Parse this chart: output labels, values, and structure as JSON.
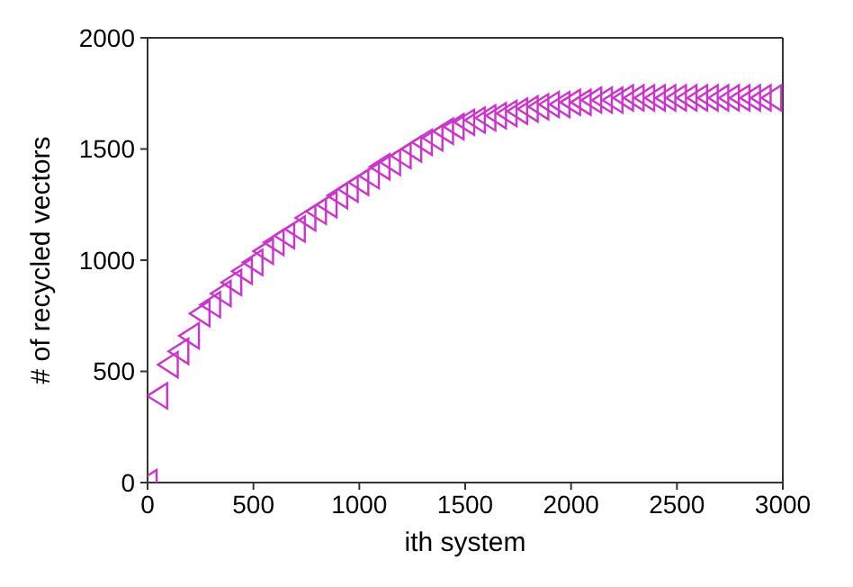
{
  "chart_data": {
    "type": "scatter",
    "xlabel": "ith system",
    "ylabel": "# of recycled vectors",
    "marker": "triangle",
    "xlim": [
      0,
      3000
    ],
    "xticks": [
      0,
      500,
      1000,
      1500,
      2000,
      2500,
      3000
    ],
    "ylim": [
      0,
      2000
    ],
    "yticks": [
      0,
      500,
      1000,
      1500,
      2000
    ],
    "series": [
      {
        "color": "#cc33cc",
        "x": [
          0,
          50,
          100,
          150,
          200,
          250,
          300,
          350,
          400,
          450,
          500,
          550,
          600,
          650,
          700,
          750,
          800,
          850,
          900,
          950,
          1000,
          1050,
          1100,
          1150,
          1200,
          1250,
          1300,
          1350,
          1400,
          1450,
          1500,
          1550,
          1600,
          1650,
          1700,
          1750,
          1800,
          1850,
          1900,
          1950,
          2000,
          2050,
          2100,
          2150,
          2200,
          2250,
          2300,
          2350,
          2400,
          2450,
          2500,
          2550,
          2600,
          2650,
          2700,
          2750,
          2800,
          2850,
          2900,
          2950
        ],
        "values": [
          0,
          390,
          530,
          590,
          660,
          760,
          800,
          850,
          900,
          950,
          990,
          1040,
          1080,
          1110,
          1140,
          1190,
          1220,
          1250,
          1290,
          1320,
          1350,
          1380,
          1420,
          1440,
          1470,
          1500,
          1530,
          1550,
          1580,
          1600,
          1620,
          1630,
          1640,
          1650,
          1660,
          1670,
          1680,
          1690,
          1700,
          1700,
          1710,
          1710,
          1720,
          1720,
          1720,
          1730,
          1730,
          1730,
          1730,
          1730,
          1730,
          1730,
          1730,
          1730,
          1730,
          1730,
          1730,
          1730,
          1730,
          1730
        ]
      }
    ]
  }
}
